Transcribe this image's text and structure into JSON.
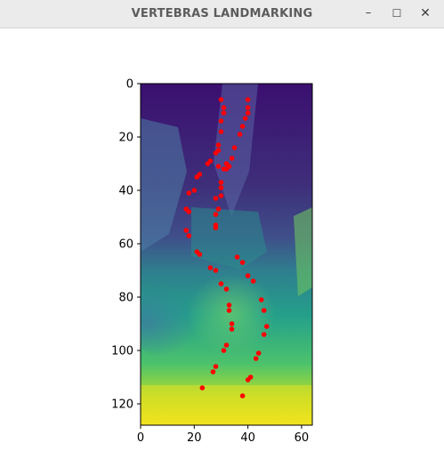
{
  "window": {
    "title": "VERTEBRAS LANDMARKING",
    "minimize_icon": "minimize-icon",
    "maximize_icon": "maximize-icon",
    "close_icon": "close-icon",
    "minimize_glyph": "–",
    "maximize_glyph": "☐",
    "close_glyph": "✕"
  },
  "chart_data": {
    "type": "scatter",
    "title": "",
    "xlabel": "",
    "ylabel": "",
    "background": "image",
    "xlim": [
      0,
      64
    ],
    "ylim": [
      128,
      0
    ],
    "xticks": [
      0,
      20,
      40,
      60
    ],
    "yticks": [
      0,
      20,
      40,
      60,
      80,
      100,
      120
    ],
    "marker_color": "#ff0000",
    "colormap": "viridis",
    "series": [
      {
        "x": [
          30,
          31,
          31,
          30,
          30,
          29,
          28,
          26,
          25,
          22,
          21,
          20,
          18,
          17,
          18,
          17,
          18,
          21,
          22,
          26,
          28,
          30,
          32,
          33,
          33,
          34,
          34,
          32,
          31,
          28,
          27,
          23,
          30,
          30,
          30,
          29,
          28,
          28,
          28,
          28,
          29,
          29,
          31,
          32,
          36,
          38,
          40,
          42,
          45,
          46,
          47,
          46,
          44,
          43,
          41,
          40,
          38,
          40,
          40,
          40,
          39,
          38,
          37,
          35,
          34,
          33,
          32
        ],
        "y": [
          6,
          9,
          11,
          14,
          18,
          23,
          26,
          29,
          30,
          34,
          35,
          40,
          41,
          47,
          48,
          55,
          57,
          63,
          64,
          69,
          70,
          75,
          77,
          83,
          85,
          90,
          92,
          98,
          100,
          106,
          108,
          114,
          37,
          39,
          42,
          47,
          49,
          53,
          54,
          43,
          31,
          25,
          32,
          30,
          65,
          67,
          72,
          74,
          81,
          85,
          91,
          94,
          101,
          103,
          110,
          111,
          117,
          6,
          9,
          11,
          13,
          16,
          19,
          24,
          28,
          31,
          32
        ]
      }
    ]
  }
}
